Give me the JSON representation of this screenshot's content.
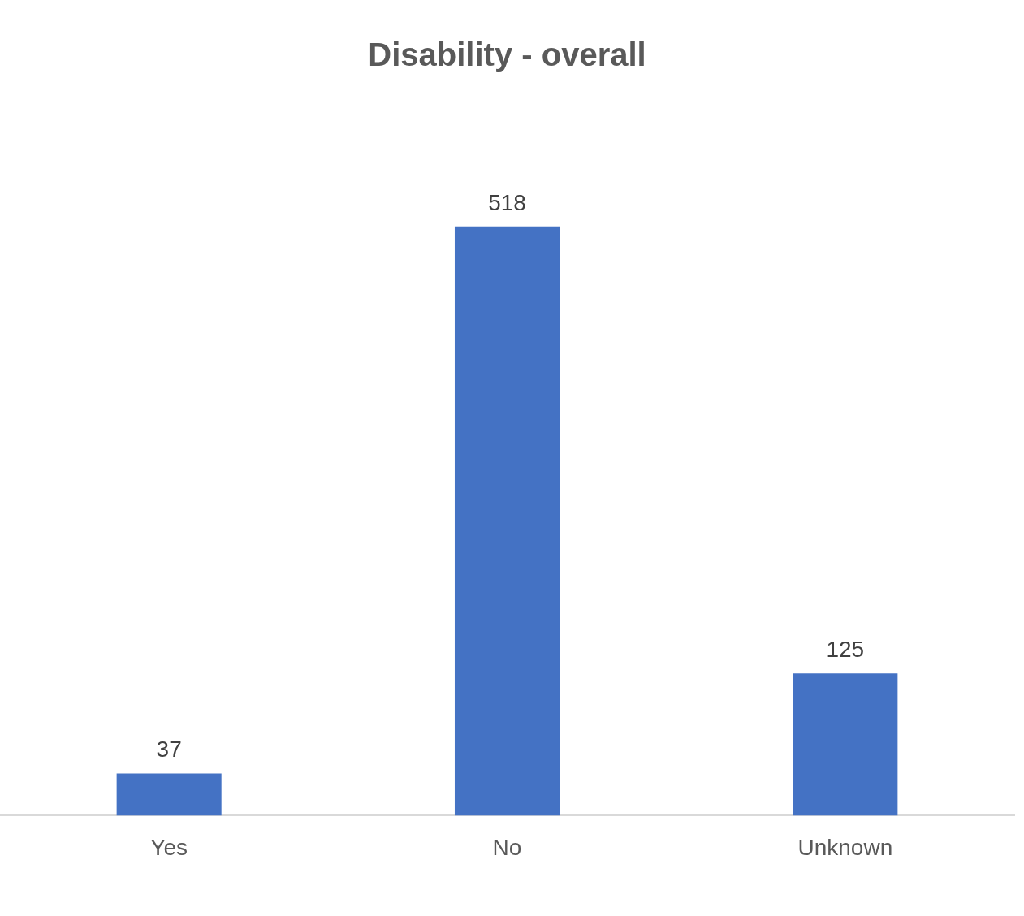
{
  "chart_data": {
    "type": "bar",
    "title": "Disability - overall",
    "categories": [
      "Yes",
      "No",
      "Unknown"
    ],
    "values": [
      37,
      518,
      125
    ],
    "color": "#4472c4",
    "grid": false,
    "data_labels": true,
    "tick_labels": "x"
  }
}
